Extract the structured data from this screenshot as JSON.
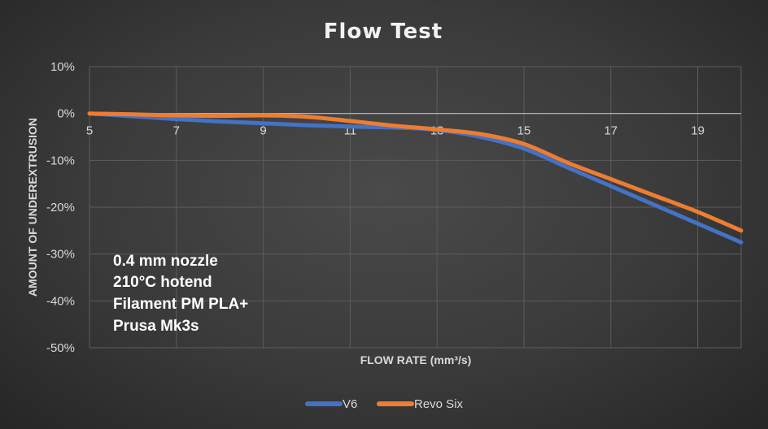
{
  "chart_data": {
    "type": "line",
    "title": "Flow Test",
    "xlabel": "FLOW RATE (mm³/s)",
    "ylabel": "AMOUNT OF UNDEREXTRUSION",
    "x_ticks": [
      5,
      7,
      9,
      11,
      13,
      15,
      17,
      19
    ],
    "xlim": [
      5,
      20
    ],
    "y_ticks": [
      10,
      0,
      -10,
      -20,
      -30,
      -40,
      -50
    ],
    "y_tick_labels": [
      "10%",
      "0%",
      "-10%",
      "-20%",
      "-30%",
      "-40%",
      "-50%"
    ],
    "ylim": [
      -50,
      10
    ],
    "grid": "horizontal",
    "legend_position": "bottom",
    "series": [
      {
        "name": "V6",
        "color": "#4472c4",
        "x": [
          5,
          6,
          7,
          8,
          9,
          10,
          11,
          12,
          13,
          14,
          15,
          16,
          17,
          18,
          19,
          20
        ],
        "values": [
          0,
          -0.6,
          -1.2,
          -1.7,
          -2.1,
          -2.5,
          -2.8,
          -3.0,
          -3.5,
          -5.0,
          -7.5,
          -11.5,
          -15.5,
          -19.5,
          -23.5,
          -27.5
        ]
      },
      {
        "name": "Revo Six",
        "color": "#ed7d31",
        "x": [
          5,
          6,
          7,
          8,
          9,
          10,
          11,
          12,
          13,
          14,
          15,
          16,
          17,
          18,
          19,
          20
        ],
        "values": [
          0,
          -0.2,
          -0.4,
          -0.5,
          -0.4,
          -0.7,
          -1.6,
          -2.6,
          -3.4,
          -4.4,
          -6.5,
          -10.5,
          -14.0,
          -17.5,
          -21.0,
          -25.0
        ]
      }
    ],
    "annotation_lines": [
      "0.4 mm nozzle",
      "210°C hotend",
      "Filament PM PLA+",
      "Prusa Mk3s"
    ]
  }
}
